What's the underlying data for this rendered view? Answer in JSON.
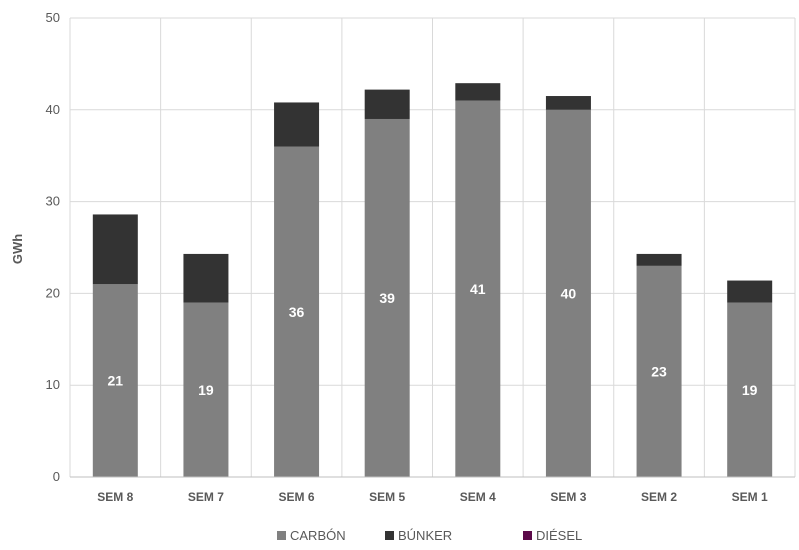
{
  "chart_data": {
    "type": "bar",
    "stacked": true,
    "title": "",
    "xlabel": "",
    "ylabel": "GWh",
    "ylim": [
      0,
      50
    ],
    "yticks": [
      0,
      10,
      20,
      30,
      40,
      50
    ],
    "grid": true,
    "legend_position": "bottom",
    "categories": [
      "SEM 8",
      "SEM 7",
      "SEM 6",
      "SEM 5",
      "SEM 4",
      "SEM 3",
      "SEM 2",
      "SEM 1"
    ],
    "series": [
      {
        "name": "CARBÓN",
        "color": "#808080",
        "values": [
          21,
          19,
          36,
          39,
          41,
          40,
          23,
          19
        ],
        "data_labels": [
          "21",
          "19",
          "36",
          "39",
          "41",
          "40",
          "23",
          "19"
        ]
      },
      {
        "name": "BÚNKER",
        "color": "#333333",
        "values": [
          7.6,
          5.3,
          4.8,
          3.2,
          1.9,
          1.5,
          1.3,
          2.4
        ]
      },
      {
        "name": "DIÉSEL",
        "color": "#5c0a4a",
        "values": [
          0,
          0,
          0,
          0,
          0,
          0,
          0,
          0
        ]
      }
    ]
  }
}
